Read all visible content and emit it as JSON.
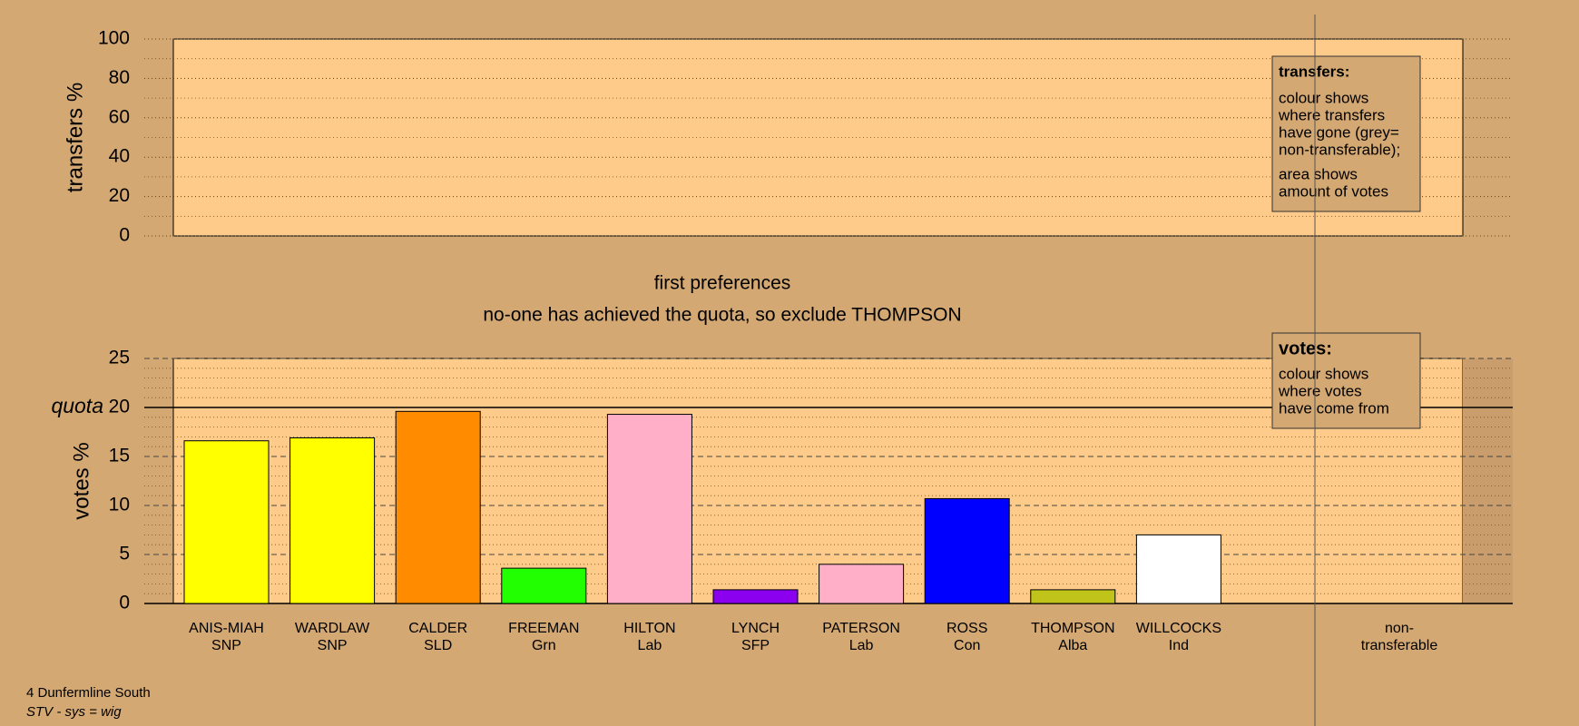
{
  "chart_data": [
    {
      "type": "bar",
      "ylabel": "transfers %",
      "ylim": [
        0,
        100
      ],
      "yticks": [
        0,
        20,
        40,
        60,
        80,
        100
      ],
      "minor_yticks": [
        10,
        30,
        50,
        70,
        90
      ],
      "grid": true,
      "major_grid_style": "dotted"
    },
    {
      "type": "bar",
      "title": "first preferences",
      "subtitle": "no-one has achieved the quota, so exclude THOMPSON",
      "ylabel": "votes %",
      "ylim": [
        0,
        25
      ],
      "yticks": [
        0,
        5,
        10,
        15,
        20,
        25
      ],
      "minor_yticks": [
        1,
        2,
        3,
        4,
        6,
        7,
        8,
        9,
        11,
        12,
        13,
        14,
        16,
        17,
        18,
        19,
        21,
        22,
        23,
        24
      ],
      "grid": true,
      "major_grid_style": "dashed",
      "quota": {
        "value": 20,
        "label": "quota"
      },
      "categories": [
        "ANIS-MIAH",
        "WARDLAW",
        "CALDER",
        "FREEMAN",
        "HILTON",
        "LYNCH",
        "PATERSON",
        "ROSS",
        "THOMPSON",
        "WILLCOCKS"
      ],
      "parties": [
        "SNP",
        "SNP",
        "SLD",
        "Grn",
        "Lab",
        "SFP",
        "Lab",
        "Con",
        "Alba",
        "Ind"
      ],
      "values": [
        16.6,
        16.9,
        19.6,
        3.6,
        19.3,
        1.4,
        4.0,
        10.7,
        1.4,
        7.0
      ],
      "colors": [
        "#ffff00",
        "#ffff00",
        "#ff8c00",
        "#22ff00",
        "#ffb0c8",
        "#8b00ee",
        "#ffb0c8",
        "#0000ff",
        "#bfc31a",
        "#ffffff"
      ],
      "extra_column_label": [
        "non-",
        "transferable"
      ]
    }
  ],
  "legends": [
    {
      "title": "transfers:",
      "paragraphs": [
        [
          "colour shows",
          "where transfers",
          "have gone (grey=",
          "non-transferable);"
        ],
        [
          "area shows",
          "amount of votes"
        ]
      ]
    },
    {
      "title": "votes:",
      "paragraphs": [
        [
          "colour shows",
          "where votes",
          "have come from"
        ]
      ]
    }
  ],
  "footer": {
    "line1": "4 Dunfermline South",
    "line2": "STV - sys = wig"
  }
}
